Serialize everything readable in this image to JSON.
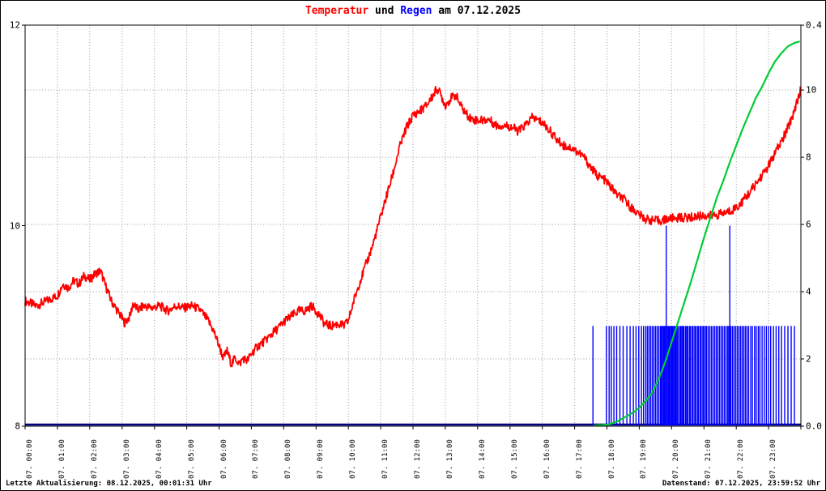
{
  "header": {
    "title_parts": [
      {
        "text": "Temperatur",
        "color": "#ff0000"
      },
      {
        "text": " und ",
        "color": "#000000"
      },
      {
        "text": "Regen",
        "color": "#0000ff"
      },
      {
        "text": " am 07.12.2025",
        "color": "#000000"
      }
    ]
  },
  "footer": {
    "last_update": "Letzte Aktualisierung: 08.12.2025, 00:01:31 Uhr",
    "data_state": "Datenstand: 07.12.2025, 23:59:52 Uhr"
  },
  "colors": {
    "temperature": "#ff0000",
    "rain_bars": "#0000ff",
    "rain_cumulative": "#00cc33",
    "baseline": "#000080",
    "grid": "#999999",
    "border": "#000000",
    "background": "#ffffff"
  },
  "chart_data": {
    "type": "line",
    "title": "Temperatur und Regen am 07.12.2025",
    "legend_position": "none",
    "x_axis": {
      "minutes_per_day": 1440,
      "tick_interval_minutes": 60,
      "tick_labels": [
        "07. 00:00",
        "07. 01:00",
        "07. 02:00",
        "07. 03:00",
        "07. 04:00",
        "07. 05:00",
        "07. 06:00",
        "07. 07:00",
        "07. 08:00",
        "07. 09:00",
        "07. 10:00",
        "07. 11:00",
        "07. 12:00",
        "07. 13:00",
        "07. 14:00",
        "07. 15:00",
        "07. 16:00",
        "07. 17:00",
        "07. 18:00",
        "07. 19:00",
        "07. 20:00",
        "07. 21:00",
        "07. 22:00",
        "07. 23:00"
      ]
    },
    "y_axis_left": {
      "tick_labels": [
        "12",
        "10",
        "8"
      ],
      "tick_values": [
        12,
        10,
        8
      ],
      "range": [
        8,
        12
      ]
    },
    "y_axis_right": {
      "tick_labels": [
        "0.4",
        "10",
        "8",
        "6",
        "4",
        "2",
        "0.0"
      ],
      "tick_values": [
        11.93,
        10,
        8,
        6,
        4,
        2,
        0
      ],
      "range": [
        0,
        11.93
      ],
      "bar_scale_range": [
        0,
        0.4
      ]
    },
    "grid": {
      "h_values": [
        2,
        4,
        6,
        8,
        10
      ],
      "v_every_minutes": 60,
      "style": "dotted"
    },
    "series": [
      {
        "name": "Temperatur",
        "axis": "left",
        "render": "line",
        "color": "#ff0000",
        "points": [
          [
            0,
            9.25
          ],
          [
            20,
            9.2
          ],
          [
            40,
            9.25
          ],
          [
            60,
            9.3
          ],
          [
            70,
            9.42
          ],
          [
            80,
            9.38
          ],
          [
            90,
            9.45
          ],
          [
            100,
            9.42
          ],
          [
            110,
            9.5
          ],
          [
            120,
            9.46
          ],
          [
            130,
            9.52
          ],
          [
            140,
            9.55
          ],
          [
            148,
            9.42
          ],
          [
            160,
            9.25
          ],
          [
            175,
            9.12
          ],
          [
            185,
            9.03
          ],
          [
            195,
            9.1
          ],
          [
            200,
            9.22
          ],
          [
            210,
            9.16
          ],
          [
            220,
            9.2
          ],
          [
            235,
            9.18
          ],
          [
            250,
            9.2
          ],
          [
            265,
            9.15
          ],
          [
            280,
            9.2
          ],
          [
            295,
            9.18
          ],
          [
            310,
            9.2
          ],
          [
            325,
            9.16
          ],
          [
            340,
            9.05
          ],
          [
            350,
            8.95
          ],
          [
            360,
            8.8
          ],
          [
            368,
            8.68
          ],
          [
            375,
            8.75
          ],
          [
            383,
            8.62
          ],
          [
            390,
            8.68
          ],
          [
            398,
            8.62
          ],
          [
            405,
            8.68
          ],
          [
            412,
            8.65
          ],
          [
            420,
            8.72
          ],
          [
            432,
            8.8
          ],
          [
            445,
            8.85
          ],
          [
            458,
            8.92
          ],
          [
            470,
            8.98
          ],
          [
            482,
            9.05
          ],
          [
            495,
            9.1
          ],
          [
            508,
            9.15
          ],
          [
            520,
            9.15
          ],
          [
            532,
            9.2
          ],
          [
            545,
            9.12
          ],
          [
            556,
            9.02
          ],
          [
            568,
            9.0
          ],
          [
            580,
            9.02
          ],
          [
            592,
            9.0
          ],
          [
            600,
            9.05
          ],
          [
            610,
            9.25
          ],
          [
            620,
            9.42
          ],
          [
            632,
            9.6
          ],
          [
            645,
            9.8
          ],
          [
            658,
            10.05
          ],
          [
            670,
            10.28
          ],
          [
            682,
            10.5
          ],
          [
            695,
            10.78
          ],
          [
            708,
            10.98
          ],
          [
            720,
            11.1
          ],
          [
            732,
            11.14
          ],
          [
            745,
            11.2
          ],
          [
            755,
            11.28
          ],
          [
            765,
            11.37
          ],
          [
            772,
            11.3
          ],
          [
            780,
            11.2
          ],
          [
            790,
            11.27
          ],
          [
            800,
            11.3
          ],
          [
            808,
            11.2
          ],
          [
            818,
            11.12
          ],
          [
            830,
            11.06
          ],
          [
            845,
            11.05
          ],
          [
            860,
            11.06
          ],
          [
            875,
            11.0
          ],
          [
            890,
            11.0
          ],
          [
            905,
            10.98
          ],
          [
            915,
            10.94
          ],
          [
            928,
            11.0
          ],
          [
            942,
            11.08
          ],
          [
            952,
            11.05
          ],
          [
            962,
            11.02
          ],
          [
            975,
            10.94
          ],
          [
            988,
            10.85
          ],
          [
            1000,
            10.8
          ],
          [
            1012,
            10.78
          ],
          [
            1025,
            10.74
          ],
          [
            1038,
            10.68
          ],
          [
            1050,
            10.58
          ],
          [
            1062,
            10.5
          ],
          [
            1075,
            10.46
          ],
          [
            1088,
            10.38
          ],
          [
            1100,
            10.3
          ],
          [
            1112,
            10.26
          ],
          [
            1125,
            10.18
          ],
          [
            1138,
            10.12
          ],
          [
            1150,
            10.07
          ],
          [
            1165,
            10.05
          ],
          [
            1180,
            10.05
          ],
          [
            1195,
            10.07
          ],
          [
            1215,
            10.08
          ],
          [
            1235,
            10.08
          ],
          [
            1255,
            10.1
          ],
          [
            1275,
            10.1
          ],
          [
            1295,
            10.12
          ],
          [
            1310,
            10.15
          ],
          [
            1325,
            10.2
          ],
          [
            1340,
            10.3
          ],
          [
            1352,
            10.38
          ],
          [
            1365,
            10.48
          ],
          [
            1378,
            10.58
          ],
          [
            1390,
            10.7
          ],
          [
            1402,
            10.82
          ],
          [
            1414,
            10.95
          ],
          [
            1426,
            11.12
          ],
          [
            1439,
            11.35
          ]
        ]
      },
      {
        "name": "Regen Summe",
        "axis": "right",
        "render": "line",
        "color": "#00cc33",
        "points": [
          [
            1056,
            0.02
          ],
          [
            1070,
            0.03
          ],
          [
            1085,
            0.06
          ],
          [
            1100,
            0.15
          ],
          [
            1115,
            0.28
          ],
          [
            1130,
            0.42
          ],
          [
            1140,
            0.55
          ],
          [
            1152,
            0.75
          ],
          [
            1164,
            1.0
          ],
          [
            1176,
            1.4
          ],
          [
            1188,
            1.9
          ],
          [
            1200,
            2.5
          ],
          [
            1212,
            3.1
          ],
          [
            1224,
            3.7
          ],
          [
            1236,
            4.3
          ],
          [
            1248,
            4.95
          ],
          [
            1260,
            5.6
          ],
          [
            1272,
            6.2
          ],
          [
            1284,
            6.8
          ],
          [
            1296,
            7.3
          ],
          [
            1308,
            7.85
          ],
          [
            1320,
            8.35
          ],
          [
            1332,
            8.85
          ],
          [
            1344,
            9.3
          ],
          [
            1356,
            9.75
          ],
          [
            1368,
            10.1
          ],
          [
            1380,
            10.5
          ],
          [
            1392,
            10.85
          ],
          [
            1404,
            11.1
          ],
          [
            1416,
            11.3
          ],
          [
            1428,
            11.4
          ],
          [
            1439,
            11.45
          ]
        ]
      },
      {
        "name": "Regen Intervall",
        "axis": "right_bar",
        "render": "bar",
        "color": "#0000ff",
        "points": [
          [
            1054,
            0.1
          ],
          [
            1079,
            0.1
          ],
          [
            1084,
            0.1
          ],
          [
            1088,
            0.1
          ],
          [
            1093,
            0.1
          ],
          [
            1098,
            0.1
          ],
          [
            1104,
            0.1
          ],
          [
            1110,
            0.1
          ],
          [
            1117,
            0.1
          ],
          [
            1123,
            0.1
          ],
          [
            1129,
            0.1
          ],
          [
            1134,
            0.1
          ],
          [
            1139,
            0.1
          ],
          [
            1144,
            0.1
          ],
          [
            1148,
            0.1
          ],
          [
            1152,
            0.1
          ],
          [
            1155,
            0.1
          ],
          [
            1158,
            0.1
          ],
          [
            1161,
            0.1
          ],
          [
            1164,
            0.1
          ],
          [
            1167,
            0.1
          ],
          [
            1170,
            0.1
          ],
          [
            1173,
            0.1
          ],
          [
            1176,
            0.1
          ],
          [
            1179,
            0.1
          ],
          [
            1181,
            0.1
          ],
          [
            1183,
            0.1
          ],
          [
            1185,
            0.1
          ],
          [
            1187,
            0.1
          ],
          [
            1189,
            0.1
          ],
          [
            1190,
            0.2
          ],
          [
            1192,
            0.1
          ],
          [
            1194,
            0.1
          ],
          [
            1196,
            0.1
          ],
          [
            1198,
            0.1
          ],
          [
            1200,
            0.1
          ],
          [
            1202,
            0.1
          ],
          [
            1204,
            0.1
          ],
          [
            1206,
            0.1
          ],
          [
            1208,
            0.1
          ],
          [
            1210,
            0.1
          ],
          [
            1212,
            0.1
          ],
          [
            1215,
            0.1
          ],
          [
            1217,
            0.1
          ],
          [
            1219,
            0.1
          ],
          [
            1221,
            0.1
          ],
          [
            1223,
            0.1
          ],
          [
            1226,
            0.1
          ],
          [
            1228,
            0.1
          ],
          [
            1230,
            0.1
          ],
          [
            1233,
            0.1
          ],
          [
            1235,
            0.1
          ],
          [
            1238,
            0.1
          ],
          [
            1240,
            0.1
          ],
          [
            1243,
            0.1
          ],
          [
            1245,
            0.1
          ],
          [
            1248,
            0.1
          ],
          [
            1250,
            0.1
          ],
          [
            1253,
            0.1
          ],
          [
            1255,
            0.1
          ],
          [
            1258,
            0.1
          ],
          [
            1260,
            0.1
          ],
          [
            1263,
            0.1
          ],
          [
            1265,
            0.1
          ],
          [
            1268,
            0.1
          ],
          [
            1271,
            0.1
          ],
          [
            1274,
            0.1
          ],
          [
            1277,
            0.1
          ],
          [
            1280,
            0.1
          ],
          [
            1283,
            0.1
          ],
          [
            1286,
            0.1
          ],
          [
            1289,
            0.1
          ],
          [
            1292,
            0.1
          ],
          [
            1295,
            0.1
          ],
          [
            1298,
            0.1
          ],
          [
            1301,
            0.1
          ],
          [
            1304,
            0.1
          ],
          [
            1306,
            0.1
          ],
          [
            1308,
            0.2
          ],
          [
            1310,
            0.1
          ],
          [
            1313,
            0.1
          ],
          [
            1316,
            0.1
          ],
          [
            1319,
            0.1
          ],
          [
            1322,
            0.1
          ],
          [
            1325,
            0.1
          ],
          [
            1328,
            0.1
          ],
          [
            1331,
            0.1
          ],
          [
            1334,
            0.1
          ],
          [
            1337,
            0.1
          ],
          [
            1340,
            0.1
          ],
          [
            1343,
            0.1
          ],
          [
            1347,
            0.1
          ],
          [
            1350,
            0.1
          ],
          [
            1354,
            0.1
          ],
          [
            1357,
            0.1
          ],
          [
            1361,
            0.1
          ],
          [
            1364,
            0.1
          ],
          [
            1368,
            0.1
          ],
          [
            1372,
            0.1
          ],
          [
            1376,
            0.1
          ],
          [
            1380,
            0.1
          ],
          [
            1384,
            0.1
          ],
          [
            1389,
            0.1
          ],
          [
            1394,
            0.1
          ],
          [
            1399,
            0.1
          ],
          [
            1404,
            0.1
          ],
          [
            1410,
            0.1
          ],
          [
            1416,
            0.1
          ],
          [
            1422,
            0.1
          ],
          [
            1428,
            0.1
          ]
        ]
      }
    ]
  }
}
